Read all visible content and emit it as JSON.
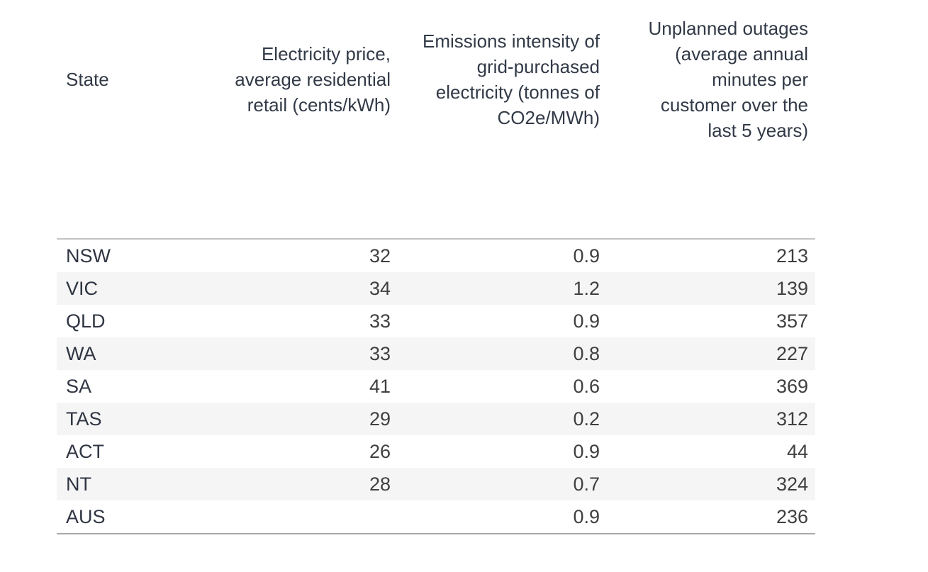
{
  "chart_data": {
    "type": "table",
    "title": "",
    "columns": [
      "State",
      "Electricity price, average residential retail (cents/kWh)",
      "Emissions intensity of grid-purchased electricity (tonnes of CO2e/MWh)",
      "Unplanned outages (average annual minutes per customer over the last 5 years)"
    ],
    "rows": [
      {
        "cells": [
          "NSW",
          "32",
          "0.9",
          "213"
        ]
      },
      {
        "cells": [
          "VIC",
          "34",
          "1.2",
          "139"
        ]
      },
      {
        "cells": [
          "QLD",
          "33",
          "0.9",
          "357"
        ]
      },
      {
        "cells": [
          "WA",
          "33",
          "0.8",
          "227"
        ]
      },
      {
        "cells": [
          "SA",
          "41",
          "0.6",
          "369"
        ]
      },
      {
        "cells": [
          "TAS",
          "29",
          "0.2",
          "312"
        ]
      },
      {
        "cells": [
          "ACT",
          "26",
          "0.9",
          "44"
        ]
      },
      {
        "cells": [
          "NT",
          "28",
          "0.7",
          "324"
        ]
      },
      {
        "cells": [
          "AUS",
          "",
          "0.9",
          "236"
        ]
      }
    ],
    "layout": {
      "numeric_alignment": "right",
      "row_banding": true,
      "banding_color": "#f5f5f5",
      "header_text_color": "#323a47",
      "body_text_color": "#3f3f3f",
      "top_rule_color": "#c3c3c3",
      "bottom_rule_color": "#a9a9a9",
      "background_color": "#ffffff"
    }
  }
}
